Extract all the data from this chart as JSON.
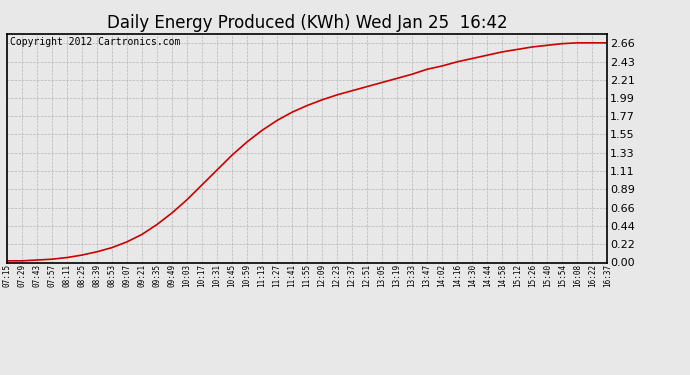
{
  "title": "Daily Energy Produced (KWh) Wed Jan 25  16:42",
  "copyright_text": "Copyright 2012 Cartronics.com",
  "line_color": "#cc0000",
  "background_color": "#e8e8e8",
  "plot_background": "#e8e8e8",
  "grid_color": "#aaaaaa",
  "yticks": [
    0.0,
    0.22,
    0.44,
    0.66,
    0.89,
    1.11,
    1.33,
    1.55,
    1.77,
    1.99,
    2.21,
    2.43,
    2.66
  ],
  "ylim": [
    0.0,
    2.77
  ],
  "x_labels": [
    "07:15",
    "07:29",
    "07:43",
    "07:57",
    "08:11",
    "08:25",
    "08:39",
    "08:53",
    "09:07",
    "09:21",
    "09:35",
    "09:49",
    "10:03",
    "10:17",
    "10:31",
    "10:45",
    "10:59",
    "11:13",
    "11:27",
    "11:41",
    "11:55",
    "12:09",
    "12:23",
    "12:37",
    "12:51",
    "13:05",
    "13:19",
    "13:33",
    "13:47",
    "14:02",
    "14:16",
    "14:30",
    "14:44",
    "14:58",
    "15:12",
    "15:26",
    "15:40",
    "15:54",
    "16:08",
    "16:22",
    "16:37"
  ],
  "y_values": [
    0.02,
    0.02,
    0.03,
    0.04,
    0.06,
    0.09,
    0.13,
    0.18,
    0.25,
    0.34,
    0.46,
    0.6,
    0.76,
    0.94,
    1.12,
    1.3,
    1.46,
    1.6,
    1.72,
    1.82,
    1.9,
    1.97,
    2.03,
    2.08,
    2.13,
    2.18,
    2.23,
    2.28,
    2.34,
    2.38,
    2.43,
    2.47,
    2.51,
    2.55,
    2.58,
    2.61,
    2.63,
    2.65,
    2.66,
    2.66,
    2.66
  ],
  "title_fontsize": 12,
  "copyright_fontsize": 7,
  "ytick_fontsize": 8,
  "xtick_fontsize": 5.5
}
